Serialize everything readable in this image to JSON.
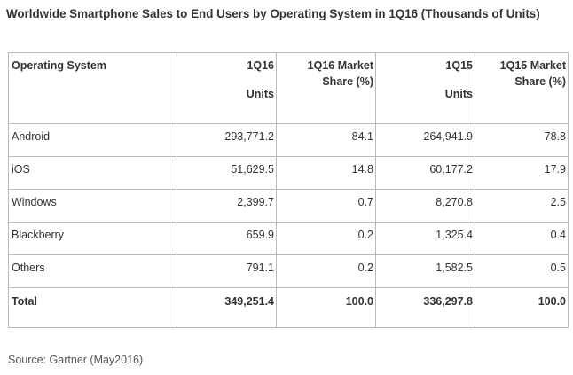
{
  "title": "Worldwide Smartphone Sales to End Users by Operating System in 1Q16 (Thousands of Units)",
  "table": {
    "headers": {
      "os": "Operating System",
      "q16_units": "1Q16",
      "q16_units_sub": "Units",
      "q16_share": "1Q16 Market Share (%)",
      "q15_units": "1Q15",
      "q15_units_sub": "Units",
      "q15_share": "1Q15 Market Share (%)"
    },
    "rows": [
      {
        "os": "Android",
        "q16_units": "293,771.2",
        "q16_share": "84.1",
        "q15_units": "264,941.9",
        "q15_share": "78.8"
      },
      {
        "os": "iOS",
        "q16_units": "51,629.5",
        "q16_share": "14.8",
        "q15_units": "60,177.2",
        "q15_share": "17.9"
      },
      {
        "os": "Windows",
        "q16_units": "2,399.7",
        "q16_share": "0.7",
        "q15_units": "8,270.8",
        "q15_share": "2.5"
      },
      {
        "os": "Blackberry",
        "q16_units": "659.9",
        "q16_share": "0.2",
        "q15_units": "1,325.4",
        "q15_share": "0.4"
      },
      {
        "os": "Others",
        "q16_units": "791.1",
        "q16_share": "0.2",
        "q15_units": "1,582.5",
        "q15_share": "0.5"
      }
    ],
    "total": {
      "os": "Total",
      "q16_units": "349,251.4",
      "q16_share": "100.0",
      "q15_units": "336,297.8",
      "q15_share": "100.0"
    }
  },
  "source": "Source: Gartner (May2016)"
}
